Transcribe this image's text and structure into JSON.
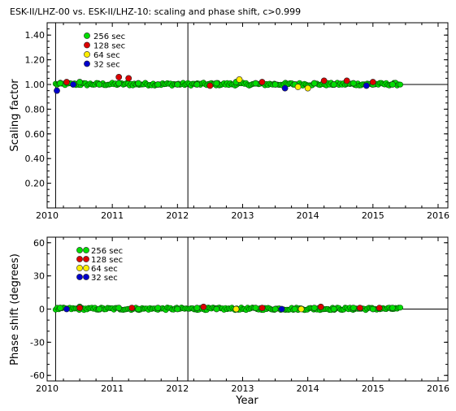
{
  "chart_data": [
    {
      "type": "scatter",
      "title": "ESK-II/LHZ-00 vs. ESK-II/LHZ-10: scaling and phase shift, c>0.999",
      "xlabel": "",
      "ylabel": "Scaling factor",
      "xlim": [
        2010.0,
        2016.15
      ],
      "ylim": [
        0.0,
        1.5
      ],
      "xticks": [
        "2010",
        "2011",
        "2012",
        "2013",
        "2014",
        "2015",
        "2016"
      ],
      "yticks": [
        "0.20",
        "0.40",
        "0.60",
        "0.80",
        "1.00",
        "1.20",
        "1.40"
      ],
      "reference_line": 1.0,
      "event_lines_x": [
        2010.13,
        2012.16
      ],
      "legend": [
        {
          "name": "256 sec",
          "color": "#00dd00"
        },
        {
          "name": "128 sec",
          "color": "#dd0000"
        },
        {
          "name": " 64 sec",
          "color": "#ffee00"
        },
        {
          "name": " 32 sec",
          "color": "#0000cc"
        }
      ],
      "legend_position": "top-left",
      "data_range_x": [
        2010.13,
        2015.42
      ],
      "series": [
        {
          "name": "256 sec",
          "x": [
            2010.2,
            2010.5,
            2010.8,
            2011.1,
            2011.4,
            2011.7,
            2012.0,
            2012.3,
            2012.6,
            2012.9,
            2013.2,
            2013.5,
            2013.8,
            2014.1,
            2014.4,
            2014.7,
            2015.0,
            2015.3
          ],
          "y": [
            1.01,
            1.02,
            1.0,
            1.01,
            1.01,
            1.0,
            1.0,
            1.0,
            1.01,
            1.02,
            1.01,
            1.0,
            1.0,
            1.01,
            1.0,
            1.01,
            1.0,
            1.0
          ]
        },
        {
          "name": "128 sec",
          "x": [
            2010.3,
            2011.1,
            2011.25,
            2012.5,
            2013.3,
            2014.25,
            2014.6,
            2015.0
          ],
          "y": [
            1.02,
            1.06,
            1.05,
            0.99,
            1.02,
            1.03,
            1.03,
            1.02
          ]
        },
        {
          "name": " 64 sec",
          "x": [
            2012.95,
            2013.85,
            2014.0
          ],
          "y": [
            1.04,
            0.98,
            0.97
          ]
        },
        {
          "name": " 32 sec",
          "x": [
            2010.15,
            2010.4,
            2013.65,
            2014.9
          ],
          "y": [
            0.95,
            1.0,
            0.97,
            0.99
          ]
        }
      ]
    },
    {
      "type": "scatter",
      "title": "",
      "xlabel": "Year",
      "ylabel": "Phase shift (degrees)",
      "xlim": [
        2010.0,
        2016.15
      ],
      "ylim": [
        -65,
        65
      ],
      "xticks": [
        "2010",
        "2011",
        "2012",
        "2013",
        "2014",
        "2015",
        "2016"
      ],
      "yticks": [
        "-60",
        "-30",
        "0",
        "30",
        "60"
      ],
      "reference_line": 0,
      "event_lines_x": [
        2010.13,
        2012.16
      ],
      "legend": [
        {
          "name": "256 sec",
          "color": "#00dd00"
        },
        {
          "name": "128 sec",
          "color": "#dd0000"
        },
        {
          "name": " 64 sec",
          "color": "#ffee00"
        },
        {
          "name": " 32 sec",
          "color": "#0000cc"
        }
      ],
      "legend_position": "top-left",
      "data_range_x": [
        2010.13,
        2015.42
      ],
      "series": [
        {
          "name": "256 sec",
          "x": [
            2010.2,
            2010.5,
            2010.8,
            2011.1,
            2011.4,
            2011.7,
            2012.0,
            2012.3,
            2012.6,
            2012.9,
            2013.2,
            2013.5,
            2013.8,
            2014.1,
            2014.4,
            2014.7,
            2015.0,
            2015.3
          ],
          "y": [
            1,
            2,
            0,
            1,
            0,
            1,
            0,
            1,
            0,
            0,
            1,
            0,
            0,
            1,
            0,
            1,
            0,
            1
          ]
        },
        {
          "name": "128 sec",
          "x": [
            2010.5,
            2011.3,
            2012.4,
            2013.3,
            2014.2,
            2014.8,
            2015.1
          ],
          "y": [
            1,
            1,
            2,
            1,
            2,
            1,
            1
          ]
        },
        {
          "name": " 64 sec",
          "x": [
            2012.9,
            2013.9
          ],
          "y": [
            0,
            0
          ]
        },
        {
          "name": " 32 sec",
          "x": [
            2010.3,
            2013.6
          ],
          "y": [
            0,
            0
          ]
        }
      ]
    }
  ]
}
